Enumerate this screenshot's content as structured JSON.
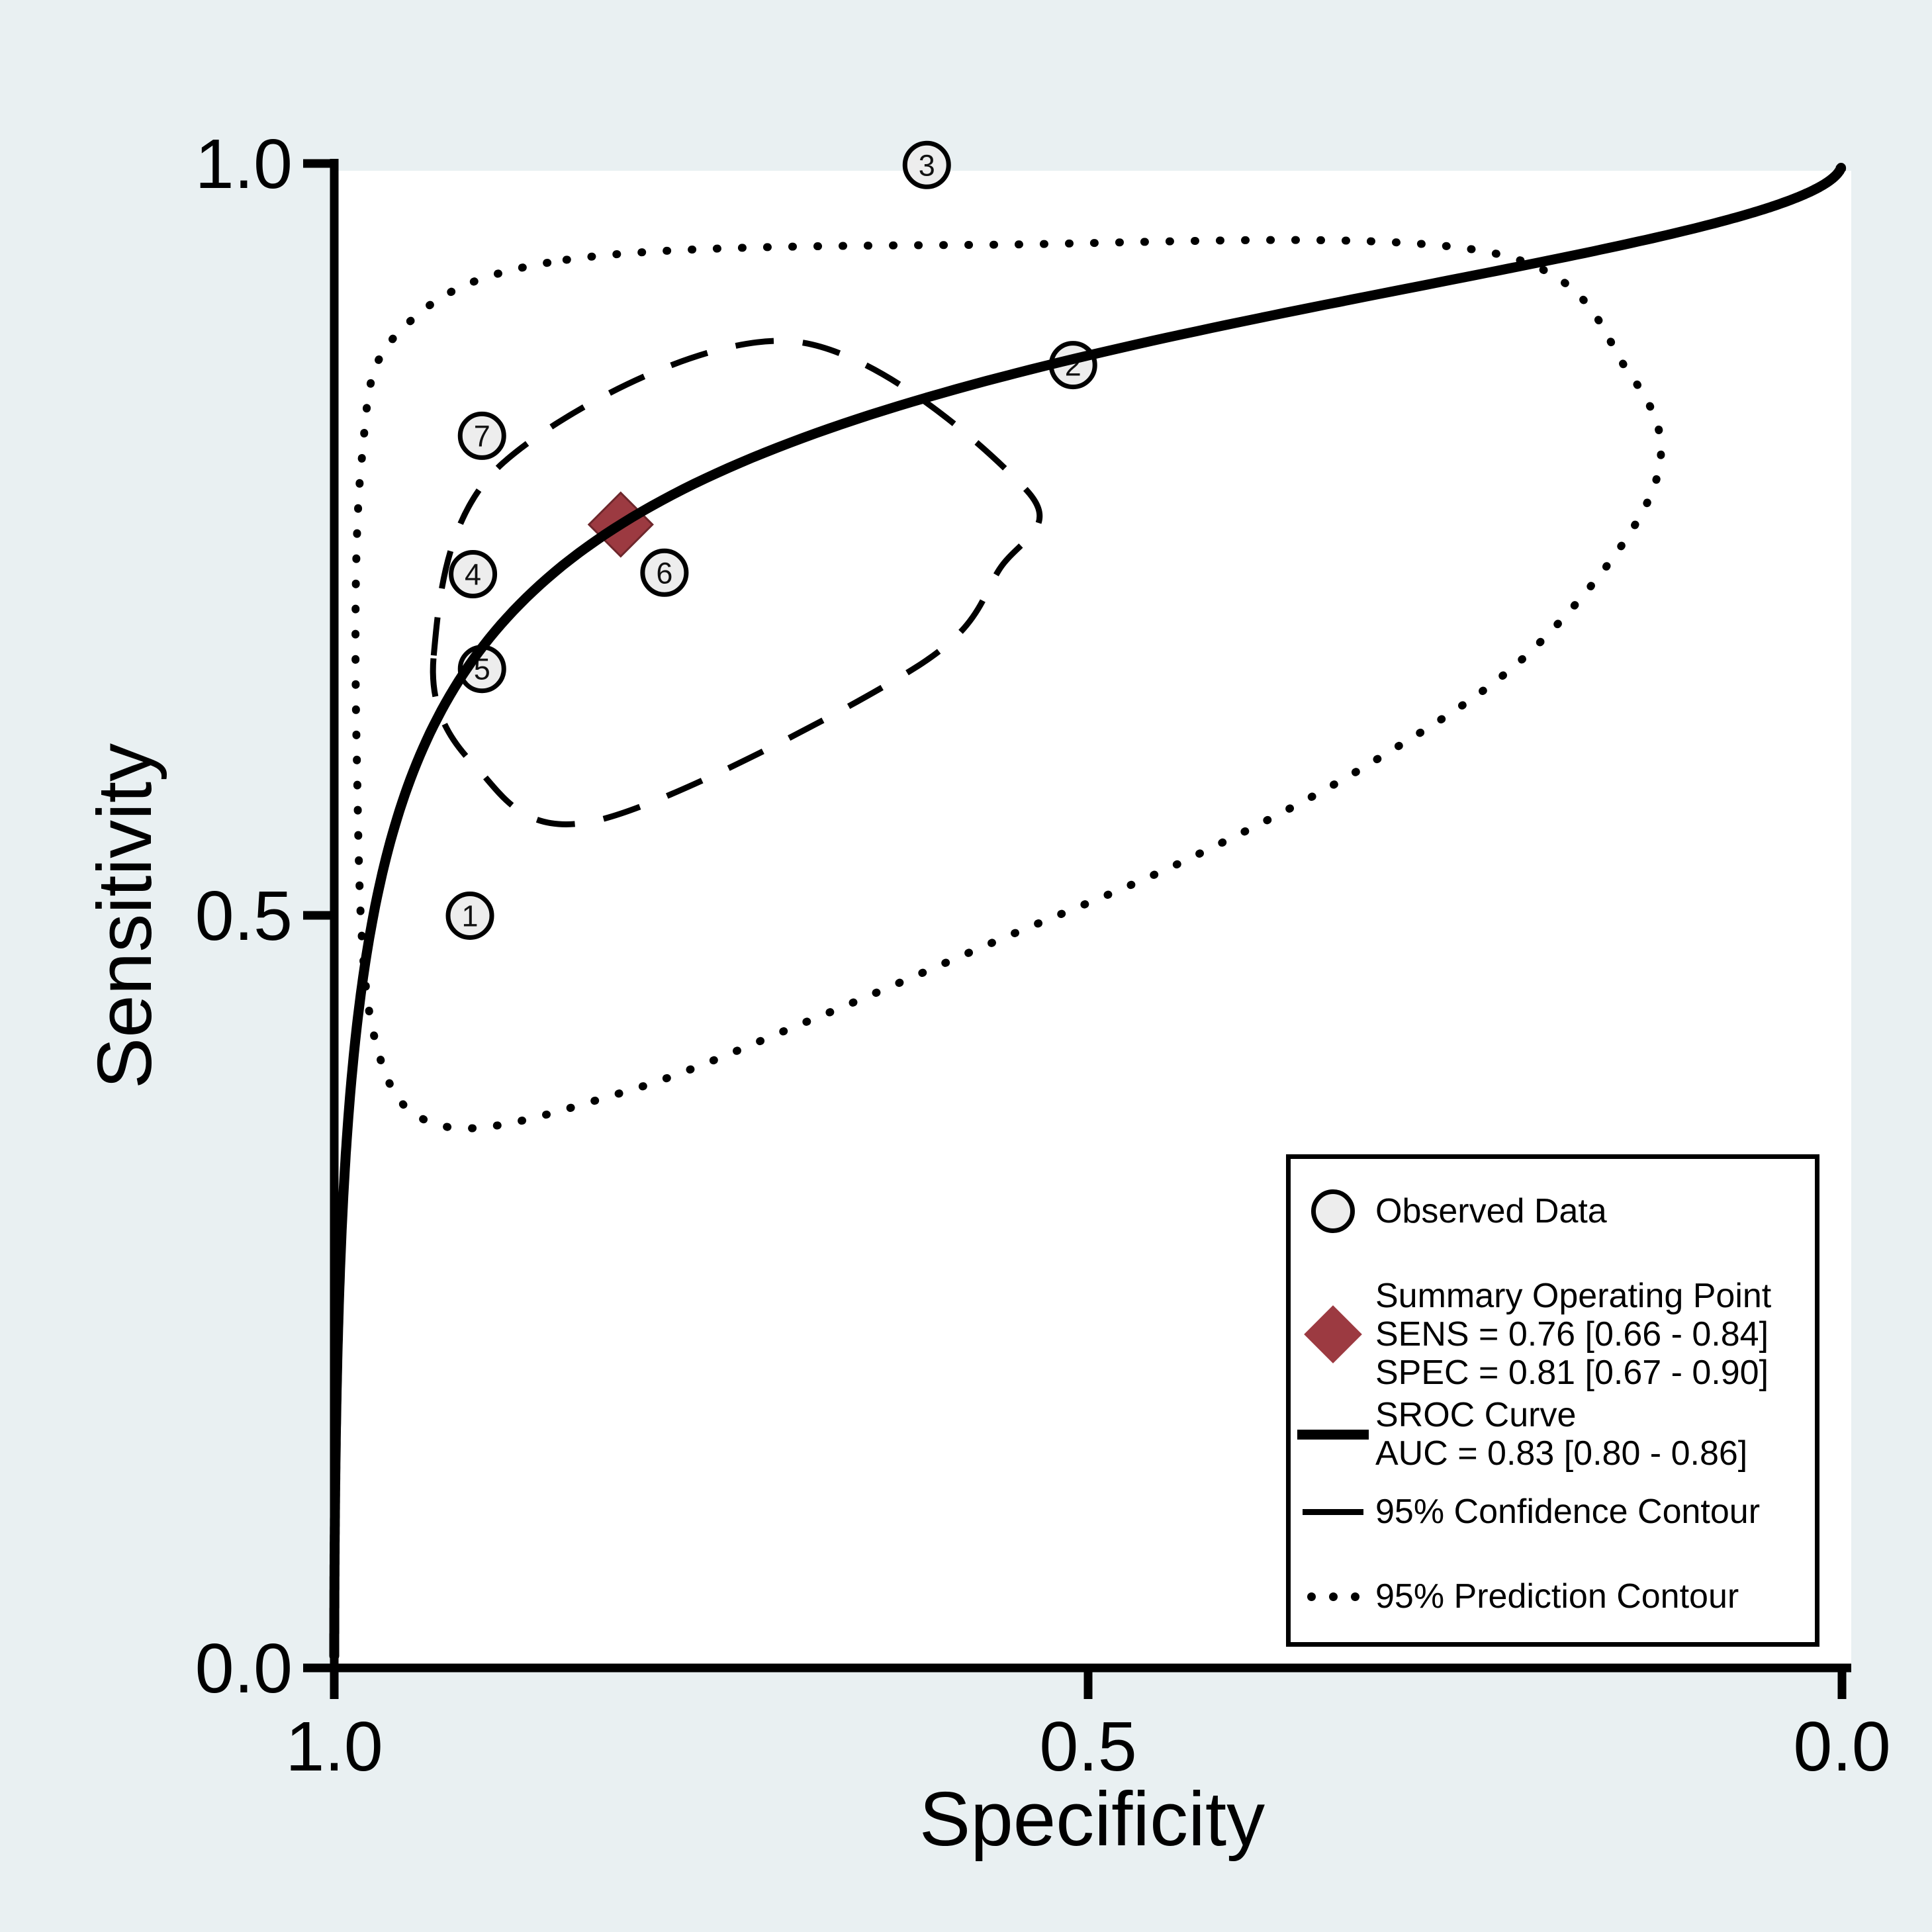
{
  "figure": {
    "background_color": "#e9f0f2",
    "plot_background_color": "#ffffff",
    "axis_color": "#000000"
  },
  "axes": {
    "x": {
      "title": "Specificity",
      "ticks": [
        "1.0",
        "0.5",
        "0.0"
      ]
    },
    "y": {
      "title": "Sensitivity",
      "ticks": [
        "1.0",
        "0.5",
        "0.0"
      ]
    }
  },
  "legend": {
    "observed_label": "Observed Data",
    "summary_line1": "Summary Operating Point",
    "summary_line2": "SENS = 0.76 [0.66 - 0.84]",
    "summary_line3": "SPEC = 0.81 [0.67 - 0.90]",
    "sroc_line1": "SROC Curve",
    "sroc_line2": "AUC = 0.83 [0.80 - 0.86]",
    "confidence_label": "95% Confidence Contour",
    "prediction_label": "95% Prediction Contour"
  },
  "chart_data": {
    "type": "scatter",
    "title": "",
    "xlabel": "Specificity",
    "ylabel": "Sensitivity",
    "x_axis": {
      "min": 0.0,
      "max": 1.0,
      "reversed": true,
      "tick_values": [
        1.0,
        0.5,
        0.0
      ]
    },
    "y_axis": {
      "min": 0.0,
      "max": 1.0,
      "tick_values": [
        1.0,
        0.5,
        0.0
      ]
    },
    "grid": false,
    "legend_position": "lower right",
    "observed_points": [
      {
        "study": 1,
        "specificity": 0.91,
        "sensitivity": 0.5
      },
      {
        "study": 2,
        "specificity": 0.51,
        "sensitivity": 0.866
      },
      {
        "study": 3,
        "specificity": 0.607,
        "sensitivity": 0.999
      },
      {
        "study": 4,
        "specificity": 0.908,
        "sensitivity": 0.727
      },
      {
        "study": 5,
        "specificity": 0.902,
        "sensitivity": 0.664
      },
      {
        "study": 6,
        "specificity": 0.781,
        "sensitivity": 0.728
      },
      {
        "study": 7,
        "specificity": 0.902,
        "sensitivity": 0.819
      }
    ],
    "summary_point": {
      "sensitivity": 0.76,
      "sensitivity_ci": [
        0.66,
        0.84
      ],
      "specificity": 0.81,
      "specificity_ci": [
        0.67,
        0.9
      ],
      "marker_color": "#9c3a41",
      "marker_edge_color": "#6e272c"
    },
    "sroc_curve": {
      "auc": 0.83,
      "auc_ci": [
        0.8,
        0.86
      ],
      "logit_intercept": 1.922,
      "logit_slope": 0.53,
      "color": "#000000"
    },
    "confidence_contour_points": [
      [
        0.934,
        0.673
      ],
      [
        0.888,
        0.801
      ],
      [
        0.699,
        0.882
      ],
      [
        0.541,
        0.783
      ],
      [
        0.559,
        0.73
      ],
      [
        0.616,
        0.664
      ],
      [
        0.827,
        0.563
      ],
      [
        0.907,
        0.6
      ]
    ],
    "prediction_contour_points": [
      [
        0.846,
        0.936
      ],
      [
        0.563,
        0.946
      ],
      [
        0.234,
        0.941
      ],
      [
        0.142,
        0.862
      ],
      [
        0.124,
        0.787
      ],
      [
        0.202,
        0.68
      ],
      [
        0.31,
        0.603
      ],
      [
        0.435,
        0.537
      ],
      [
        0.559,
        0.484
      ],
      [
        0.683,
        0.431
      ],
      [
        0.807,
        0.383
      ],
      [
        0.927,
        0.36
      ],
      [
        0.974,
        0.422
      ],
      [
        0.985,
        0.603
      ],
      [
        0.982,
        0.801
      ],
      [
        0.956,
        0.889
      ]
    ],
    "observed_marker": {
      "fill": "#ededed",
      "edge": "#000000"
    }
  }
}
